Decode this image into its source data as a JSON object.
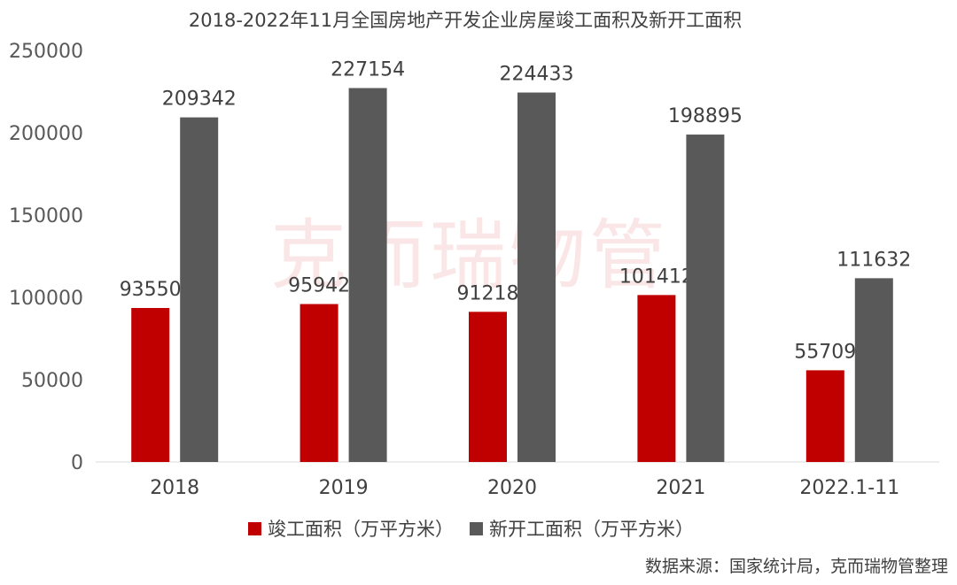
{
  "chart_data": {
    "type": "bar",
    "title": "2018-2022年11月全国房地产开发企业房屋竣工面积及新开工面积",
    "categories": [
      "2018",
      "2019",
      "2020",
      "2021",
      "2022.1-11"
    ],
    "series": [
      {
        "name": "竣工面积（万平方米）",
        "color": "#c00000",
        "values": [
          93550,
          95942,
          91218,
          101412,
          55709
        ]
      },
      {
        "name": "新开工面积（万平方米）",
        "color": "#595959",
        "values": [
          209342,
          227154,
          224433,
          198895,
          111632
        ]
      }
    ],
    "ylim": [
      0,
      250000
    ],
    "yticks": [
      "0",
      "50000",
      "100000",
      "150000",
      "200000",
      "250000"
    ],
    "legend_position": "bottom",
    "grid": false
  },
  "watermark": "克而瑞物管",
  "source": "数据来源：国家统计局，克而瑞物管整理"
}
